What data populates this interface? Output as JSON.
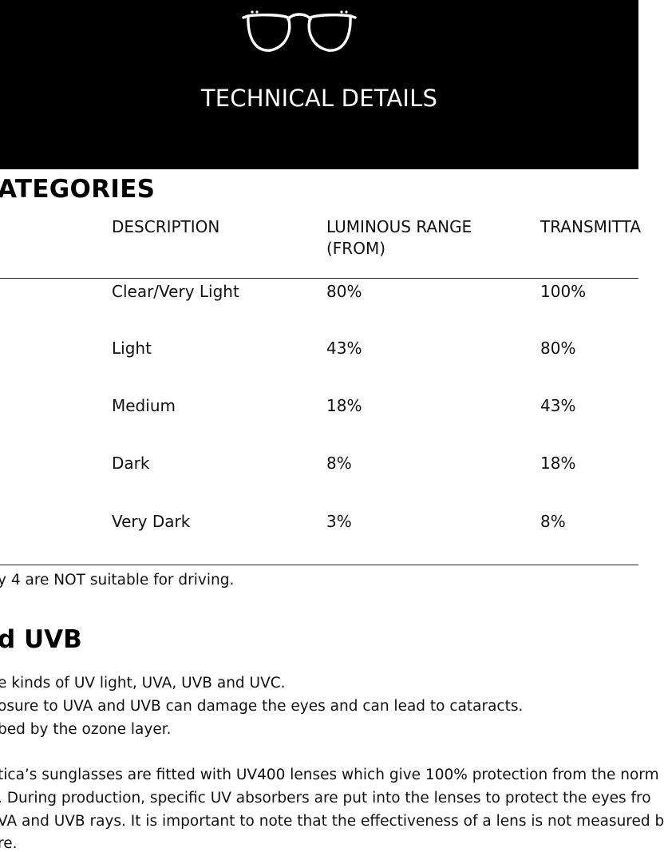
{
  "header": {
    "icon": "glasses-icon",
    "title": "TECHNICAL DETAILS"
  },
  "categories": {
    "heading": "ATEGORIES",
    "columns": {
      "description": "DESCRIPTION",
      "luminous_line1": "LUMINOUS RANGE",
      "luminous_line2": "(FROM)",
      "transmittance": "TRANSMITTA"
    },
    "rows": [
      {
        "description": "Clear/Very Light",
        "from": "80%",
        "to": "100%"
      },
      {
        "description": "Light",
        "from": "43%",
        "to": "80%"
      },
      {
        "description": "Medium",
        "from": "18%",
        "to": "43%"
      },
      {
        "description": "Dark",
        "from": "8%",
        "to": "18%"
      },
      {
        "description": "Very Dark",
        "from": "3%",
        "to": "8%"
      }
    ],
    "note": "y 4 are NOT suitable for driving."
  },
  "uv": {
    "heading": "d UVB",
    "paragraph1": [
      "e kinds of UV light, UVA, UVB and UVC.",
      "osure to UVA and UVB can damage the eyes and can lead to cataracts.",
      "bed by the ozone layer."
    ],
    "paragraph2": [
      "tica’s sunglasses are fitted with UV400 lenses which give 100% protection from the norm",
      ". During production, specific UV absorbers are put into the lenses to protect the eyes fro",
      "VA and UVB rays. It is important to note that the effectiveness of a lens is not measured b",
      "re."
    ]
  }
}
